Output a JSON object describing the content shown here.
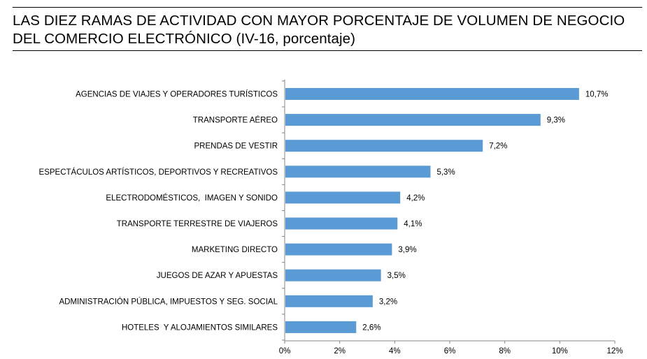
{
  "title": "LAS DIEZ RAMAS DE ACTIVIDAD CON MAYOR PORCENTAJE DE VOLUMEN DE NEGOCIO DEL COMERCIO ELECTRÓNICO (IV-16, porcentaje)",
  "colors": {
    "bar": "#5b9bd5",
    "axis": "#868686",
    "text": "#000000"
  },
  "chart_data": {
    "type": "bar",
    "orientation": "horizontal",
    "title": "LAS DIEZ RAMAS DE ACTIVIDAD CON MAYOR PORCENTAJE DE VOLUMEN DE NEGOCIO DEL COMERCIO ELECTRÓNICO (IV-16, porcentaje)",
    "categories": [
      "AGENCIAS DE VIAJES Y OPERADORES TURÍSTICOS",
      "TRANSPORTE AÉREO",
      "PRENDAS DE VESTIR",
      "ESPECTÁCULOS ARTÍSTICOS, DEPORTIVOS Y RECREATIVOS",
      "ELECTRODOMÉSTICOS,  IMAGEN Y SONIDO",
      "TRANSPORTE TERRESTRE DE VIAJEROS",
      "MARKETING DIRECTO",
      "JUEGOS DE AZAR Y APUESTAS",
      "ADMINISTRACIÓN PÚBLICA, IMPUESTOS Y SEG. SOCIAL",
      "HOTELES  Y ALOJAMIENTOS SIMILARES"
    ],
    "values": [
      10.7,
      9.3,
      7.2,
      5.3,
      4.2,
      4.1,
      3.9,
      3.5,
      3.2,
      2.6
    ],
    "value_labels": [
      "10,7%",
      "9,3%",
      "7,2%",
      "5,3%",
      "4,2%",
      "4,1%",
      "3,9%",
      "3,5%",
      "3,2%",
      "2,6%"
    ],
    "x_ticks": [
      0,
      2,
      4,
      6,
      8,
      10,
      12
    ],
    "x_tick_labels": [
      "0%",
      "2%",
      "4%",
      "6%",
      "8%",
      "10%",
      "12%"
    ],
    "xlim": [
      0,
      12
    ],
    "xlabel": "",
    "ylabel": "",
    "grid": false,
    "legend": "none"
  }
}
